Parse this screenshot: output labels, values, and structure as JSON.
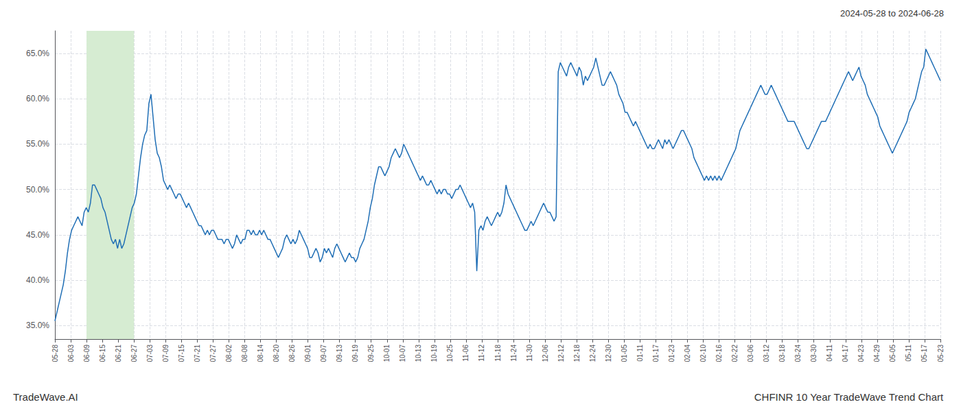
{
  "chart_data": {
    "type": "line",
    "title": "CHFINR 10 Year TradeWave Trend Chart",
    "subtitle": "2024-05-28 to 2024-06-28",
    "annotations": [
      "TradeWave.AI"
    ],
    "color": "#1f6eb5",
    "grid": true,
    "xlim": [
      0,
      424
    ],
    "xticks": [
      {
        "value": 0,
        "label": "05-28"
      },
      {
        "value": 7.571428571428571,
        "label": "06-03"
      },
      {
        "value": 15.142857142857142,
        "label": "06-09"
      },
      {
        "value": 22.714285714285715,
        "label": "06-15"
      },
      {
        "value": 30.285714285714285,
        "label": "06-21"
      },
      {
        "value": 37.857142857142854,
        "label": "06-27"
      },
      {
        "value": 45.42857142857143,
        "label": "07-03"
      },
      {
        "value": 53,
        "label": "07-09"
      },
      {
        "value": 60.57142857142857,
        "label": "07-15"
      },
      {
        "value": 68.14285714285714,
        "label": "07-21"
      },
      {
        "value": 75.71428571428571,
        "label": "07-27"
      },
      {
        "value": 83.28571428571429,
        "label": "08-02"
      },
      {
        "value": 90.85714285714286,
        "label": "08-08"
      },
      {
        "value": 98.42857142857143,
        "label": "08-14"
      },
      {
        "value": 106,
        "label": "08-20"
      },
      {
        "value": 113.57142857142857,
        "label": "08-26"
      },
      {
        "value": 121.14285714285714,
        "label": "09-01"
      },
      {
        "value": 128.71428571428572,
        "label": "09-07"
      },
      {
        "value": 136.28571428571428,
        "label": "09-13"
      },
      {
        "value": 143.85714285714286,
        "label": "09-19"
      },
      {
        "value": 151.42857142857142,
        "label": "09-25"
      },
      {
        "value": 159,
        "label": "10-01"
      },
      {
        "value": 166.57142857142858,
        "label": "10-07"
      },
      {
        "value": 174.14285714285714,
        "label": "10-13"
      },
      {
        "value": 181.71428571428572,
        "label": "10-19"
      },
      {
        "value": 189.28571428571428,
        "label": "10-25"
      },
      {
        "value": 196.85714285714286,
        "label": "11-06"
      },
      {
        "value": 204.42857142857142,
        "label": "11-12"
      },
      {
        "value": 212,
        "label": "11-18"
      },
      {
        "value": 219.57142857142858,
        "label": "11-24"
      },
      {
        "value": 227.14285714285714,
        "label": "11-30"
      },
      {
        "value": 234.71428571428572,
        "label": "12-06"
      },
      {
        "value": 242.28571428571428,
        "label": "12-12"
      },
      {
        "value": 249.85714285714286,
        "label": "12-18"
      },
      {
        "value": 257.42857142857144,
        "label": "12-24"
      },
      {
        "value": 265,
        "label": "12-30"
      },
      {
        "value": 272.57142857142856,
        "label": "01-05"
      },
      {
        "value": 280.14285714285717,
        "label": "01-11"
      },
      {
        "value": 287.7142857142857,
        "label": "01-17"
      },
      {
        "value": 295.2857142857143,
        "label": "01-23"
      },
      {
        "value": 302.85714285714283,
        "label": "02-04"
      },
      {
        "value": 310.42857142857144,
        "label": "02-10"
      },
      {
        "value": 318,
        "label": "02-16"
      },
      {
        "value": 325.57142857142856,
        "label": "02-22"
      },
      {
        "value": 333.14285714285717,
        "label": "03-06"
      },
      {
        "value": 340.7142857142857,
        "label": "03-12"
      },
      {
        "value": 348.2857142857143,
        "label": "03-18"
      },
      {
        "value": 355.85714285714283,
        "label": "03-24"
      },
      {
        "value": 363.42857142857144,
        "label": "03-30"
      },
      {
        "value": 371,
        "label": "04-11"
      },
      {
        "value": 378.57142857142856,
        "label": "04-17"
      },
      {
        "value": 386.14285714285717,
        "label": "04-23"
      },
      {
        "value": 393.7142857142857,
        "label": "04-29"
      },
      {
        "value": 401.2857142857143,
        "label": "05-05"
      },
      {
        "value": 408.85714285714283,
        "label": "05-11"
      },
      {
        "value": 416.42857142857144,
        "label": "05-17"
      },
      {
        "value": 424,
        "label": "05-23"
      }
    ],
    "ylim": [
      33.5,
      67.5
    ],
    "yticks": [
      {
        "value": 35.0,
        "label": "35.0%"
      },
      {
        "value": 40.0,
        "label": "40.0%"
      },
      {
        "value": 45.0,
        "label": "45.0%"
      },
      {
        "value": 50.0,
        "label": "50.0%"
      },
      {
        "value": 55.0,
        "label": "55.0%"
      },
      {
        "value": 60.0,
        "label": "60.0%"
      },
      {
        "value": 65.0,
        "label": "65.0%"
      }
    ],
    "shaded_span": {
      "x": [
        15.142857142857142,
        37.857142857142854
      ],
      "color": "#d6ecd2"
    },
    "x": [
      0,
      1,
      2,
      3,
      4,
      5,
      6,
      7,
      8,
      9,
      10,
      11,
      12,
      13,
      14,
      15,
      16,
      17,
      18,
      19,
      20,
      21,
      22,
      23,
      24,
      25,
      26,
      27,
      28,
      29,
      30,
      31,
      32,
      33,
      34,
      35,
      36,
      37,
      38,
      39,
      40,
      41,
      42,
      43,
      44,
      45,
      46,
      47,
      48,
      49,
      50,
      51,
      52,
      53,
      54,
      55,
      56,
      57,
      58,
      59,
      60,
      61,
      62,
      63,
      64,
      65,
      66,
      67,
      68,
      69,
      70,
      71,
      72,
      73,
      74,
      75,
      76,
      77,
      78,
      79,
      80,
      81,
      82,
      83,
      84,
      85,
      86,
      87,
      88,
      89,
      90,
      91,
      92,
      93,
      94,
      95,
      96,
      97,
      98,
      99,
      100,
      101,
      102,
      103,
      104,
      105,
      106,
      107,
      108,
      109,
      110,
      111,
      112,
      113,
      114,
      115,
      116,
      117,
      118,
      119,
      120,
      121,
      122,
      123,
      124,
      125,
      126,
      127,
      128,
      129,
      130,
      131,
      132,
      133,
      134,
      135,
      136,
      137,
      138,
      139,
      140,
      141,
      142,
      143,
      144,
      145,
      146,
      147,
      148,
      149,
      150,
      151,
      152,
      153,
      154,
      155,
      156,
      157,
      158,
      159,
      160,
      161,
      162,
      163,
      164,
      165,
      166,
      167,
      168,
      169,
      170,
      171,
      172,
      173,
      174,
      175,
      176,
      177,
      178,
      179,
      180,
      181,
      182,
      183,
      184,
      185,
      186,
      187,
      188,
      189,
      190,
      191,
      192,
      193,
      194,
      195,
      196,
      197,
      198,
      199,
      200,
      201,
      202,
      203,
      204,
      205,
      206,
      207,
      208,
      209,
      210,
      211,
      212,
      213,
      214,
      215,
      216,
      217,
      218,
      219,
      220,
      221,
      222,
      223,
      224,
      225,
      226,
      227,
      228,
      229,
      230,
      231,
      232,
      233,
      234,
      235,
      236,
      237,
      238,
      239,
      240,
      241,
      242,
      243,
      244,
      245,
      246,
      247,
      248,
      249,
      250,
      251,
      252,
      253,
      254,
      255,
      256,
      257,
      258,
      259,
      260,
      261,
      262,
      263,
      264,
      265,
      266,
      267,
      268,
      269,
      270,
      271,
      272,
      273,
      274,
      275,
      276,
      277,
      278,
      279,
      280,
      281,
      282,
      283,
      284,
      285,
      286,
      287,
      288,
      289,
      290,
      291,
      292,
      293,
      294,
      295,
      296,
      297,
      298,
      299,
      300,
      301,
      302,
      303,
      304,
      305,
      306,
      307,
      308,
      309,
      310,
      311,
      312,
      313,
      314,
      315,
      316,
      317,
      318,
      319,
      320,
      321,
      322,
      323,
      324,
      325,
      326,
      327,
      328,
      329,
      330,
      331,
      332,
      333,
      334,
      335,
      336,
      337,
      338,
      339,
      340,
      341,
      342,
      343,
      344,
      345,
      346,
      347,
      348,
      349,
      350,
      351,
      352,
      353,
      354,
      355,
      356,
      357,
      358,
      359,
      360,
      361,
      362,
      363,
      364,
      365,
      366,
      367,
      368,
      369,
      370,
      371,
      372,
      373,
      374,
      375,
      376,
      377,
      378,
      379,
      380,
      381,
      382,
      383,
      384,
      385,
      386,
      387,
      388,
      389,
      390,
      391,
      392,
      393,
      394,
      395,
      396,
      397,
      398,
      399,
      400,
      401,
      402,
      403,
      404,
      405,
      406,
      407,
      408,
      409,
      410,
      411,
      412,
      413,
      414,
      415,
      416,
      417,
      418,
      419,
      420,
      421,
      422,
      423,
      424
    ],
    "values": [
      35.5,
      36.5,
      37.5,
      38.5,
      39.5,
      41.0,
      43.0,
      44.5,
      45.5,
      46.0,
      46.5,
      47.0,
      46.5,
      46.0,
      47.5,
      48.0,
      47.5,
      48.5,
      50.5,
      50.5,
      50.0,
      49.5,
      49.0,
      48.0,
      47.5,
      46.5,
      45.5,
      44.5,
      44.0,
      44.5,
      43.5,
      44.5,
      43.5,
      44.0,
      45.0,
      46.0,
      47.0,
      48.0,
      48.5,
      49.5,
      51.5,
      53.5,
      55.0,
      56.0,
      56.5,
      59.5,
      60.5,
      58.0,
      55.5,
      54.0,
      53.5,
      52.5,
      51.0,
      50.5,
      50.0,
      50.5,
      50.0,
      49.5,
      49.0,
      49.5,
      49.5,
      49.0,
      48.5,
      48.0,
      48.5,
      48.0,
      47.5,
      47.0,
      46.5,
      46.0,
      46.0,
      45.5,
      45.0,
      45.5,
      45.0,
      45.5,
      45.5,
      45.0,
      44.5,
      44.5,
      44.5,
      44.0,
      44.5,
      44.5,
      44.0,
      43.5,
      44.0,
      45.0,
      44.5,
      44.0,
      44.5,
      44.5,
      45.5,
      45.5,
      45.0,
      45.5,
      45.0,
      45.0,
      45.5,
      45.0,
      45.5,
      45.0,
      44.5,
      44.5,
      44.0,
      43.5,
      43.0,
      42.5,
      43.0,
      43.5,
      44.5,
      45.0,
      44.5,
      44.0,
      44.5,
      44.0,
      44.5,
      45.5,
      45.0,
      44.5,
      44.0,
      43.5,
      42.5,
      42.5,
      43.0,
      43.5,
      43.0,
      42.0,
      42.5,
      43.5,
      43.0,
      43.5,
      43.0,
      42.5,
      43.5,
      44.0,
      43.5,
      43.0,
      42.5,
      42.0,
      42.5,
      43.0,
      42.5,
      42.5,
      42.0,
      42.5,
      43.5,
      44.0,
      44.5,
      45.5,
      46.5,
      48.0,
      49.0,
      50.5,
      51.5,
      52.5,
      52.5,
      52.0,
      51.5,
      52.0,
      52.5,
      53.5,
      54.0,
      54.5,
      54.0,
      53.5,
      54.0,
      55.0,
      54.5,
      54.0,
      53.5,
      53.0,
      52.5,
      52.0,
      51.5,
      51.0,
      51.5,
      51.0,
      50.5,
      50.5,
      51.0,
      50.5,
      50.0,
      49.5,
      50.0,
      49.5,
      50.0,
      50.0,
      49.5,
      49.5,
      49.0,
      49.5,
      50.0,
      50.0,
      50.5,
      50.0,
      49.5,
      49.0,
      48.5,
      48.0,
      48.5,
      47.5,
      41.0,
      45.5,
      46.0,
      45.5,
      46.5,
      47.0,
      46.5,
      46.0,
      46.5,
      47.0,
      47.5,
      47.0,
      47.5,
      48.5,
      50.5,
      49.5,
      49.0,
      48.5,
      48.0,
      47.5,
      47.0,
      46.5,
      46.0,
      45.5,
      45.5,
      46.0,
      46.5,
      46.0,
      46.5,
      47.0,
      47.5,
      48.0,
      48.5,
      48.0,
      47.5,
      47.5,
      47.0,
      46.5,
      47.0,
      63.0,
      64.0,
      63.5,
      63.0,
      62.5,
      63.5,
      64.0,
      63.5,
      63.0,
      62.5,
      63.5,
      63.0,
      61.5,
      62.5,
      62.0,
      62.5,
      63.0,
      63.5,
      64.5,
      63.5,
      62.5,
      61.5,
      61.5,
      62.0,
      62.5,
      63.0,
      62.5,
      62.0,
      61.5,
      60.5,
      60.0,
      59.5,
      58.5,
      58.5,
      58.0,
      57.5,
      57.0,
      57.5,
      57.0,
      56.5,
      56.0,
      55.5,
      55.0,
      54.5,
      55.0,
      54.5,
      54.5,
      55.0,
      55.5,
      55.0,
      54.5,
      55.5,
      55.0,
      55.5,
      55.0,
      54.5,
      55.0,
      55.5,
      56.0,
      56.5,
      56.5,
      56.0,
      55.5,
      55.0,
      54.5,
      53.5,
      53.0,
      52.5,
      52.0,
      51.5,
      51.0,
      51.5,
      51.0,
      51.5,
      51.0,
      51.5,
      51.0,
      51.5,
      51.0,
      51.5,
      52.0,
      52.5,
      53.0,
      53.5,
      54.0,
      54.5,
      55.5,
      56.5,
      57.0,
      57.5,
      58.0,
      58.5,
      59.0,
      59.5,
      60.0,
      60.5,
      61.0,
      61.5,
      61.0,
      60.5,
      60.5,
      61.0,
      61.5,
      61.0,
      60.5,
      60.0,
      59.5,
      59.0,
      58.5,
      58.0,
      57.5,
      57.5,
      57.5,
      57.5,
      57.0,
      56.5,
      56.0,
      55.5,
      55.0,
      54.5,
      54.5,
      55.0,
      55.5,
      56.0,
      56.5,
      57.0,
      57.5,
      57.5,
      57.5,
      58.0,
      58.5,
      59.0,
      59.5,
      60.0,
      60.5,
      61.0,
      61.5,
      62.0,
      62.5,
      63.0,
      62.5,
      62.0,
      62.5,
      63.0,
      63.5,
      62.5,
      62.0,
      61.5,
      60.5,
      60.0,
      59.5,
      59.0,
      58.5,
      58.0,
      57.0,
      56.5,
      56.0,
      55.5,
      55.0,
      54.5,
      54.0,
      54.5,
      55.0,
      55.5,
      56.0,
      56.5,
      57.0,
      57.5,
      58.5,
      59.0,
      59.5,
      60.0,
      61.0,
      62.0,
      63.0,
      63.5,
      65.5,
      65.0,
      64.5,
      64.0,
      63.5,
      63.0,
      62.5,
      62.0
    ]
  }
}
